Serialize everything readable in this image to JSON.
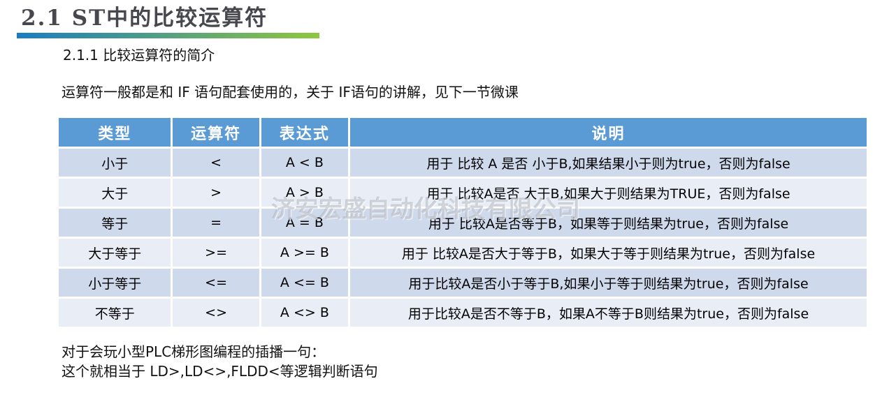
{
  "title": "2.1  ST中的比较运算符",
  "subtitle": "2.1.1 比较运算符的简介",
  "intro": "运算符一般都是和 IF 语句配套使用的，关于 IF语句的讲解，见下一节微课",
  "watermark": "济安宏盛自动化科技有限公司",
  "table": {
    "headers": [
      "类型",
      "运算符",
      "表达式",
      "说明"
    ],
    "rows": [
      {
        "type": "小于",
        "operator": "<",
        "expression": "A < B",
        "description": "用于 比较 A 是否 小于B,如果结果小于则为true，否则为false"
      },
      {
        "type": "大于",
        "operator": ">",
        "expression": "A > B",
        "description": "用于 比较A是否 大于B,如果大于则结果为TRUE，否则为false"
      },
      {
        "type": "等于",
        "operator": "=",
        "expression": "A = B",
        "description": "用于 比较A是否等于B，如果等于则结果为true，否则为false"
      },
      {
        "type": "大于等于",
        "operator": ">=",
        "expression": "A >= B",
        "description": "用于 比较A是否大于等于B，如果大于等于则结果为true，否则为false"
      },
      {
        "type": "小于等于",
        "operator": "<=",
        "expression": "A <= B",
        "description": "用于比较A是否小于等于B,如果小于等于则结果为true，否则为false"
      },
      {
        "type": "不等于",
        "operator": "<>",
        "expression": "A <> B",
        "description": "用于比较A是否不等于B，如果A不等于B则结果为true，否则为false"
      }
    ]
  },
  "footer": {
    "line1": "对于会玩小型PLC梯形图编程的插播一句：",
    "line2": "这个就相当于 LD>,LD<>,FLDD<等逻辑判断语句"
  },
  "colors": {
    "title_text": "#47474E",
    "header_bg": "#5B9BD5",
    "header_text": "#FFFFFF",
    "row_band_dark": "#CFD9EC",
    "row_band_light": "#E9EDF6",
    "bar_gradient_start": "#1B7CC1",
    "bar_gradient_end": "#8EC63F"
  }
}
